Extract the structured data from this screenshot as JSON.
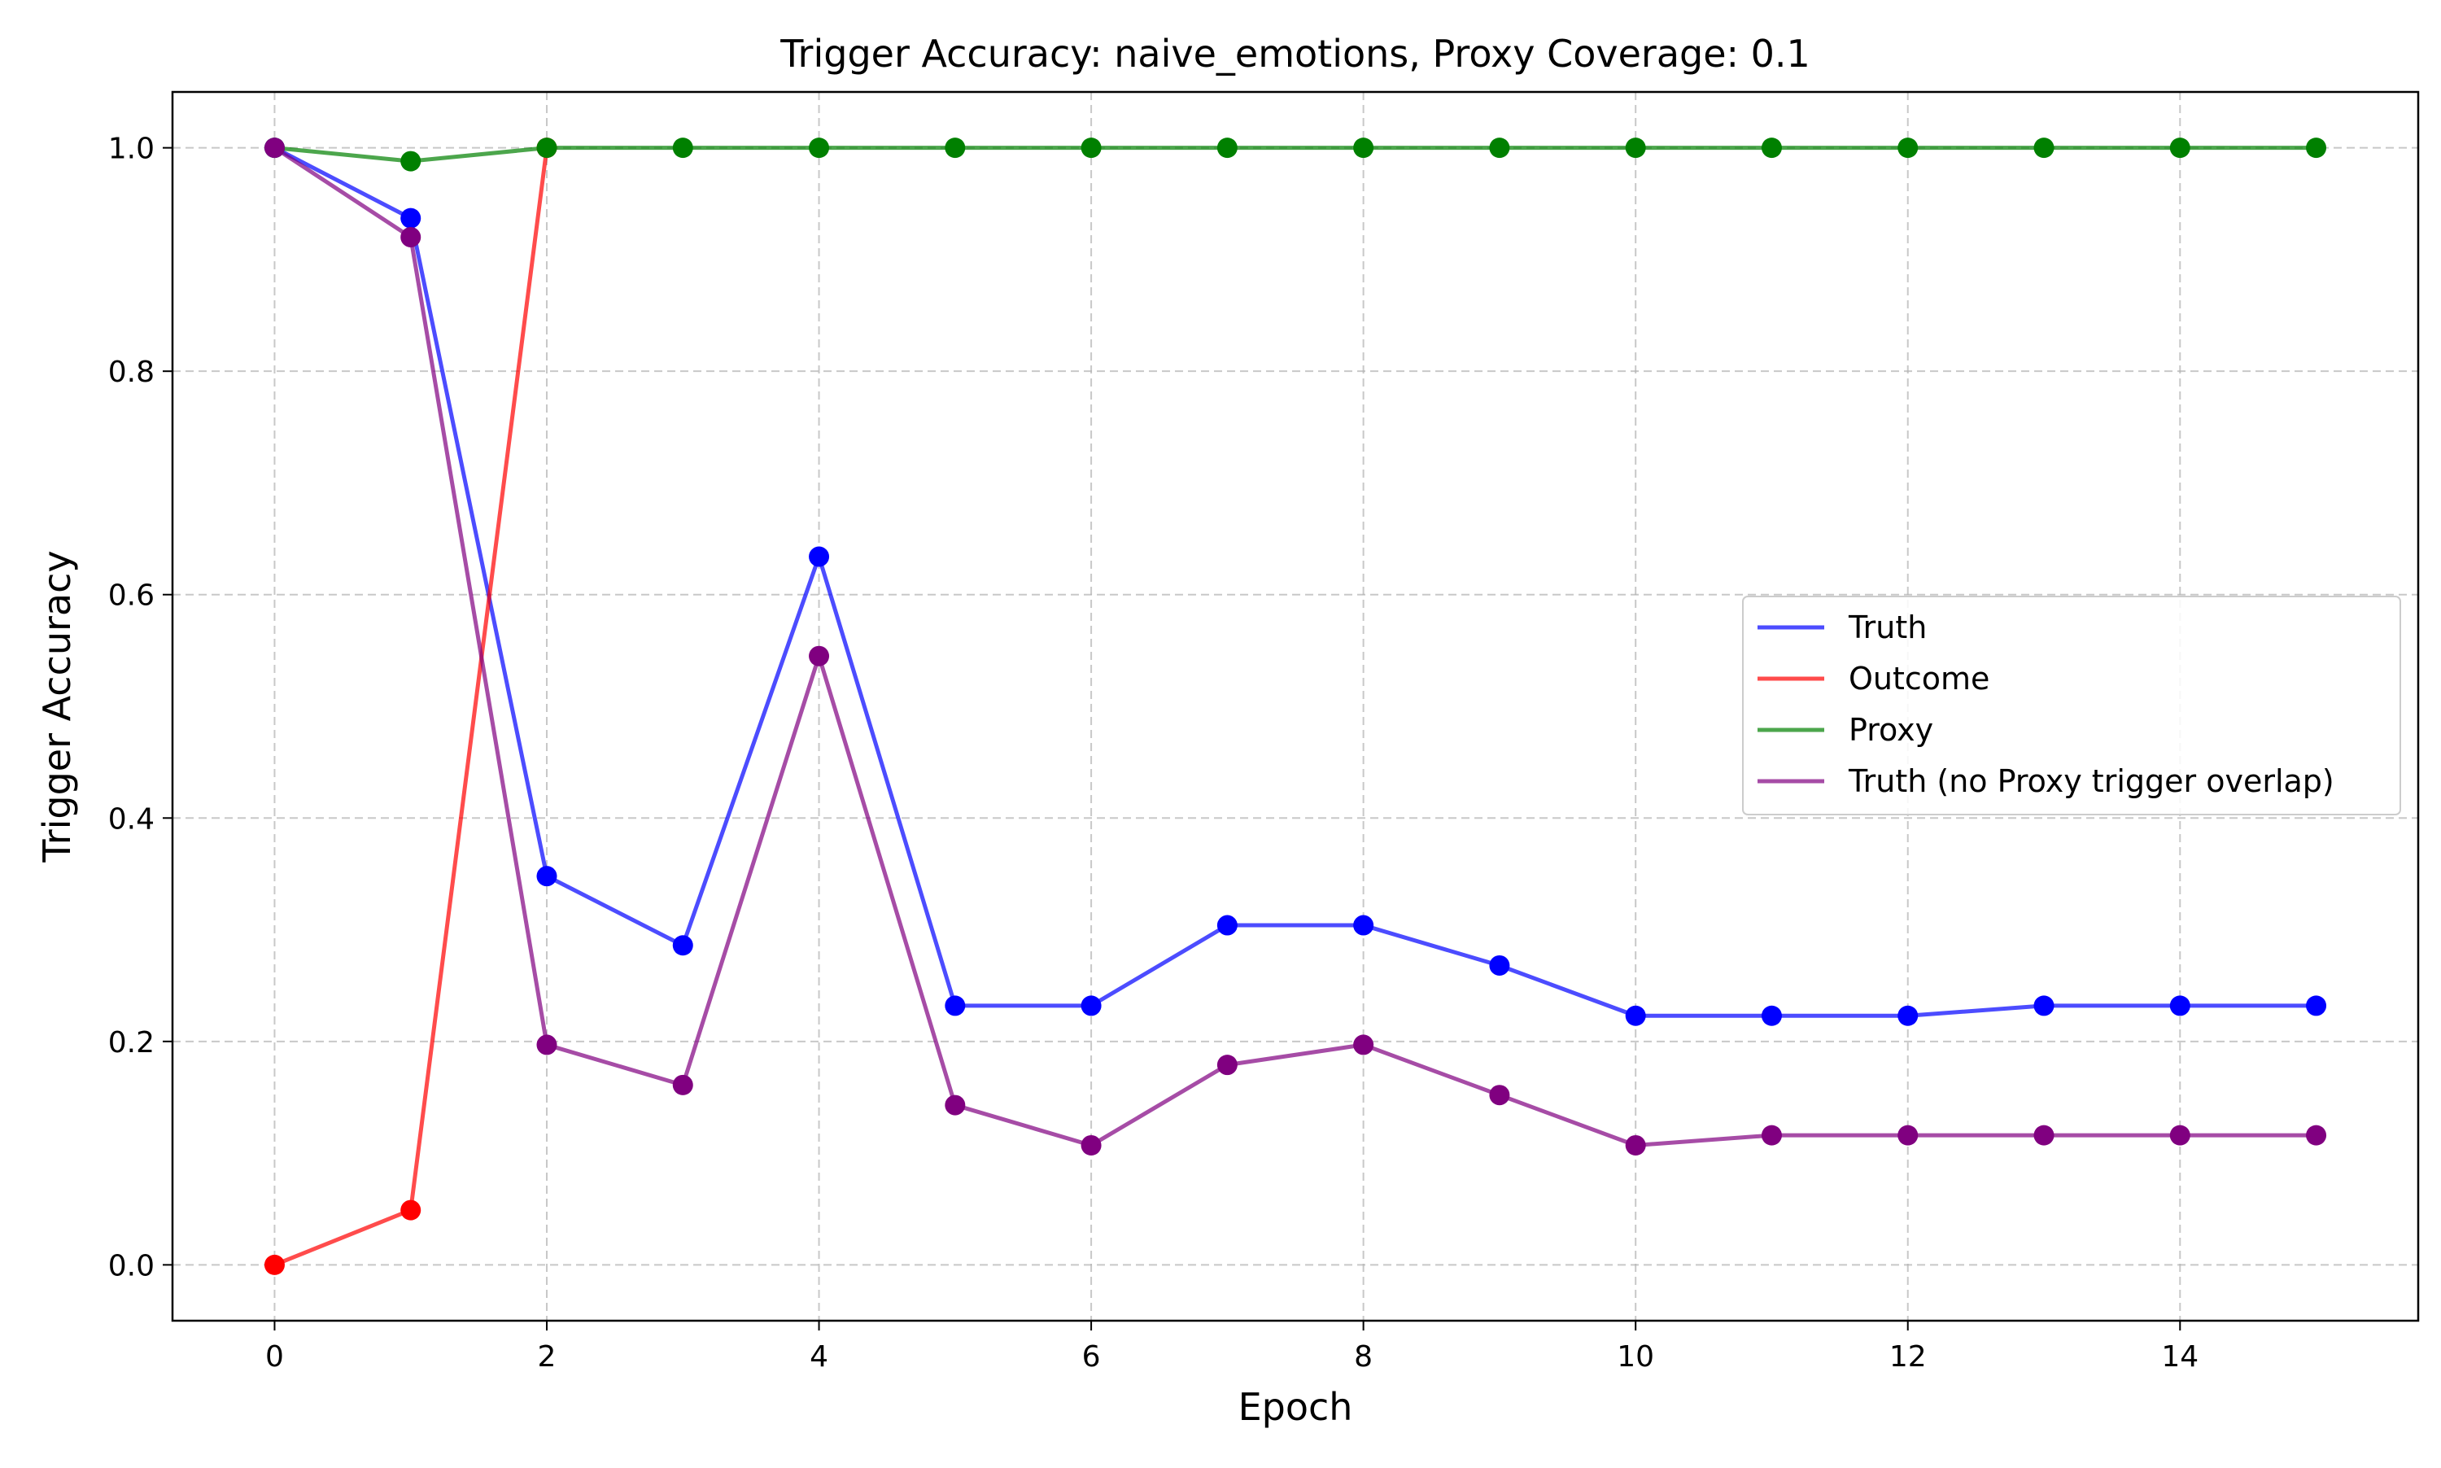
{
  "chart_data": {
    "type": "line",
    "title": "Trigger Accuracy: naive_emotions, Proxy Coverage: 0.1",
    "xlabel": "Epoch",
    "ylabel": "Trigger Accuracy",
    "xlim": [
      -0.75,
      15.75
    ],
    "ylim": [
      -0.05,
      1.05
    ],
    "x_ticks": [
      0,
      2,
      4,
      6,
      8,
      10,
      12,
      14
    ],
    "y_ticks": [
      0.0,
      0.2,
      0.4,
      0.6,
      0.8,
      1.0
    ],
    "x_tick_labels": [
      "0",
      "2",
      "4",
      "6",
      "8",
      "10",
      "12",
      "14"
    ],
    "y_tick_labels": [
      "0.0",
      "0.2",
      "0.4",
      "0.6",
      "0.8",
      "1.0"
    ],
    "grid": true,
    "legend_position": "center-right",
    "series": [
      {
        "name": "Truth",
        "color": "#0000ff",
        "x": [
          0,
          1,
          2,
          3,
          4,
          5,
          6,
          7,
          8,
          9,
          10,
          11,
          12,
          13,
          14,
          15
        ],
        "y": [
          1.0,
          0.937,
          0.348,
          0.286,
          0.634,
          0.232,
          0.232,
          0.304,
          0.304,
          0.268,
          0.223,
          0.223,
          0.223,
          0.232,
          0.232,
          0.232
        ]
      },
      {
        "name": "Outcome",
        "color": "#ff0000",
        "x": [
          0,
          1,
          2
        ],
        "y": [
          0.0,
          0.049,
          1.0
        ]
      },
      {
        "name": "Proxy",
        "color": "#008000",
        "x": [
          0,
          1,
          2,
          3,
          4,
          5,
          6,
          7,
          8,
          9,
          10,
          11,
          12,
          13,
          14,
          15
        ],
        "y": [
          1.0,
          0.988,
          1.0,
          1.0,
          1.0,
          1.0,
          1.0,
          1.0,
          1.0,
          1.0,
          1.0,
          1.0,
          1.0,
          1.0,
          1.0,
          1.0
        ]
      },
      {
        "name": "Truth (no Proxy trigger overlap)",
        "color": "#800080",
        "x": [
          0,
          1,
          2,
          3,
          4,
          5,
          6,
          7,
          8,
          9,
          10,
          11,
          12,
          13,
          14,
          15
        ],
        "y": [
          1.0,
          0.92,
          0.197,
          0.161,
          0.545,
          0.143,
          0.107,
          0.179,
          0.197,
          0.152,
          0.107,
          0.116,
          0.116,
          0.116,
          0.116,
          0.116
        ]
      }
    ]
  }
}
